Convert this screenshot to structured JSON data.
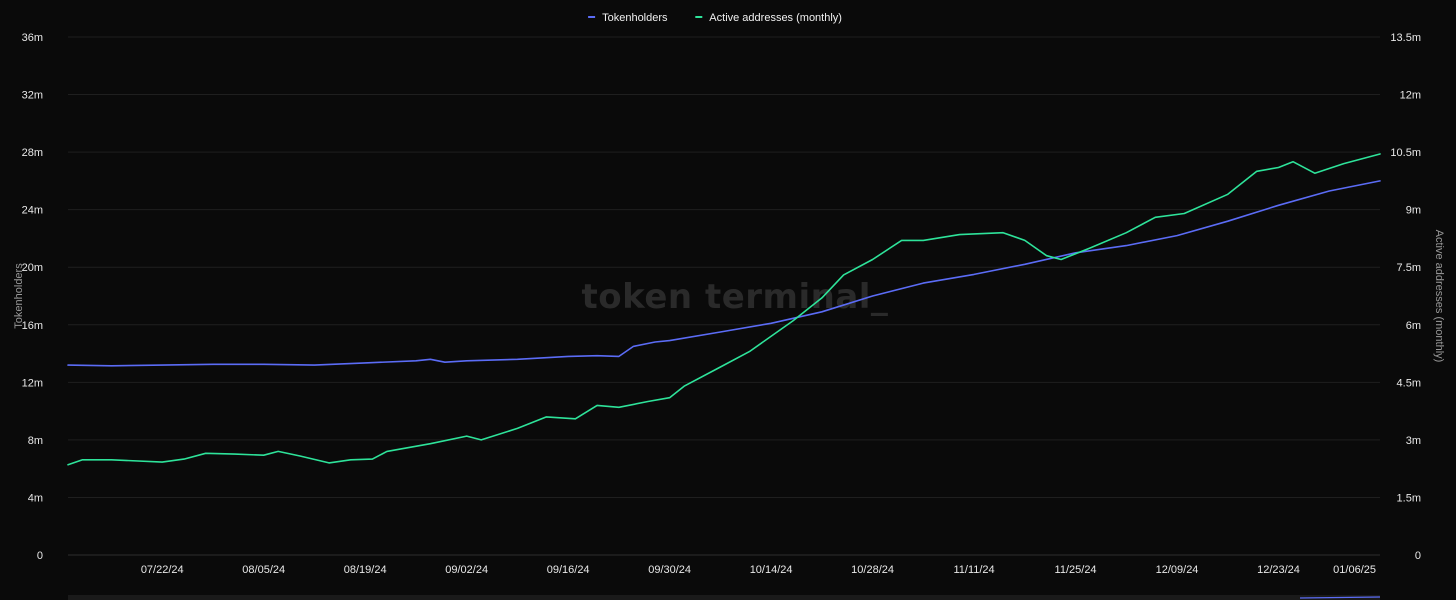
{
  "chart_data": {
    "type": "line",
    "watermark": "token terminal_",
    "legend": {
      "placement": "top-center",
      "items": [
        {
          "name": "Tokenholders",
          "color": "#5b6cf6"
        },
        {
          "name": "Active addresses (monthly)",
          "color": "#2ee39a"
        }
      ]
    },
    "x_axis": {
      "type": "date",
      "range": [
        "2024-07-09",
        "2025-01-06"
      ],
      "ticks": [
        {
          "date": "2024-07-22",
          "label": "07/22/24"
        },
        {
          "date": "2024-08-05",
          "label": "08/05/24"
        },
        {
          "date": "2024-08-19",
          "label": "08/19/24"
        },
        {
          "date": "2024-09-02",
          "label": "09/02/24"
        },
        {
          "date": "2024-09-16",
          "label": "09/16/24"
        },
        {
          "date": "2024-09-30",
          "label": "09/30/24"
        },
        {
          "date": "2024-10-14",
          "label": "10/14/24"
        },
        {
          "date": "2024-10-28",
          "label": "10/28/24"
        },
        {
          "date": "2024-11-11",
          "label": "11/11/24"
        },
        {
          "date": "2024-11-25",
          "label": "11/25/24"
        },
        {
          "date": "2024-12-09",
          "label": "12/09/24"
        },
        {
          "date": "2024-12-23",
          "label": "12/23/24"
        },
        {
          "date": "2025-01-06",
          "label": "01/06/25"
        }
      ]
    },
    "y_left": {
      "label": "Tokenholders",
      "range": [
        0,
        36000000
      ],
      "ticks": [
        {
          "value": 0,
          "label": "0"
        },
        {
          "value": 4000000,
          "label": "4m"
        },
        {
          "value": 8000000,
          "label": "8m"
        },
        {
          "value": 12000000,
          "label": "12m"
        },
        {
          "value": 16000000,
          "label": "16m"
        },
        {
          "value": 20000000,
          "label": "20m"
        },
        {
          "value": 24000000,
          "label": "24m"
        },
        {
          "value": 28000000,
          "label": "28m"
        },
        {
          "value": 32000000,
          "label": "32m"
        },
        {
          "value": 36000000,
          "label": "36m"
        }
      ]
    },
    "y_right": {
      "label": "Active addresses (monthly)",
      "range": [
        0,
        13500000
      ],
      "ticks": [
        {
          "value": 0,
          "label": "0"
        },
        {
          "value": 1500000,
          "label": "1.5m"
        },
        {
          "value": 3000000,
          "label": "3m"
        },
        {
          "value": 4500000,
          "label": "4.5m"
        },
        {
          "value": 6000000,
          "label": "6m"
        },
        {
          "value": 7500000,
          "label": "7.5m"
        },
        {
          "value": 9000000,
          "label": "9m"
        },
        {
          "value": 10500000,
          "label": "10.5m"
        },
        {
          "value": 12000000,
          "label": "12m"
        },
        {
          "value": 13500000,
          "label": "13.5m"
        }
      ]
    },
    "grid": true,
    "series": [
      {
        "name": "Tokenholders",
        "axis": "left",
        "color": "#5b6cf6",
        "points": [
          [
            "2024-07-09",
            13200000
          ],
          [
            "2024-07-15",
            13150000
          ],
          [
            "2024-07-22",
            13200000
          ],
          [
            "2024-07-29",
            13250000
          ],
          [
            "2024-08-05",
            13250000
          ],
          [
            "2024-08-12",
            13200000
          ],
          [
            "2024-08-19",
            13350000
          ],
          [
            "2024-08-26",
            13500000
          ],
          [
            "2024-08-28",
            13600000
          ],
          [
            "2024-08-30",
            13400000
          ],
          [
            "2024-09-02",
            13500000
          ],
          [
            "2024-09-09",
            13600000
          ],
          [
            "2024-09-16",
            13800000
          ],
          [
            "2024-09-20",
            13850000
          ],
          [
            "2024-09-23",
            13800000
          ],
          [
            "2024-09-25",
            14500000
          ],
          [
            "2024-09-28",
            14800000
          ],
          [
            "2024-09-30",
            14900000
          ],
          [
            "2024-10-07",
            15500000
          ],
          [
            "2024-10-14",
            16100000
          ],
          [
            "2024-10-21",
            16900000
          ],
          [
            "2024-10-28",
            18000000
          ],
          [
            "2024-11-04",
            18900000
          ],
          [
            "2024-11-11",
            19500000
          ],
          [
            "2024-11-18",
            20200000
          ],
          [
            "2024-11-25",
            21000000
          ],
          [
            "2024-12-02",
            21500000
          ],
          [
            "2024-12-09",
            22200000
          ],
          [
            "2024-12-16",
            23200000
          ],
          [
            "2024-12-23",
            24300000
          ],
          [
            "2024-12-30",
            25300000
          ],
          [
            "2025-01-06",
            26000000
          ]
        ]
      },
      {
        "name": "Active addresses (monthly)",
        "axis": "right",
        "color": "#2ee39a",
        "points": [
          [
            "2024-07-09",
            2350000
          ],
          [
            "2024-07-11",
            2480000
          ],
          [
            "2024-07-15",
            2480000
          ],
          [
            "2024-07-22",
            2420000
          ],
          [
            "2024-07-25",
            2500000
          ],
          [
            "2024-07-28",
            2650000
          ],
          [
            "2024-08-01",
            2630000
          ],
          [
            "2024-08-05",
            2600000
          ],
          [
            "2024-08-07",
            2700000
          ],
          [
            "2024-08-10",
            2580000
          ],
          [
            "2024-08-14",
            2400000
          ],
          [
            "2024-08-17",
            2480000
          ],
          [
            "2024-08-20",
            2500000
          ],
          [
            "2024-08-22",
            2700000
          ],
          [
            "2024-08-28",
            2900000
          ],
          [
            "2024-09-02",
            3100000
          ],
          [
            "2024-09-04",
            3000000
          ],
          [
            "2024-09-09",
            3300000
          ],
          [
            "2024-09-13",
            3600000
          ],
          [
            "2024-09-17",
            3550000
          ],
          [
            "2024-09-20",
            3900000
          ],
          [
            "2024-09-23",
            3850000
          ],
          [
            "2024-09-27",
            4000000
          ],
          [
            "2024-09-30",
            4100000
          ],
          [
            "2024-10-02",
            4400000
          ],
          [
            "2024-10-07",
            4900000
          ],
          [
            "2024-10-11",
            5300000
          ],
          [
            "2024-10-17",
            6100000
          ],
          [
            "2024-10-21",
            6700000
          ],
          [
            "2024-10-24",
            7300000
          ],
          [
            "2024-10-28",
            7700000
          ],
          [
            "2024-11-01",
            8200000
          ],
          [
            "2024-11-04",
            8200000
          ],
          [
            "2024-11-09",
            8350000
          ],
          [
            "2024-11-15",
            8400000
          ],
          [
            "2024-11-18",
            8200000
          ],
          [
            "2024-11-21",
            7800000
          ],
          [
            "2024-11-23",
            7700000
          ],
          [
            "2024-11-27",
            8000000
          ],
          [
            "2024-12-02",
            8400000
          ],
          [
            "2024-12-06",
            8800000
          ],
          [
            "2024-12-10",
            8900000
          ],
          [
            "2024-12-16",
            9400000
          ],
          [
            "2024-12-20",
            10000000
          ],
          [
            "2024-12-23",
            10100000
          ],
          [
            "2024-12-25",
            10250000
          ],
          [
            "2024-12-28",
            9950000
          ],
          [
            "2025-01-01",
            10200000
          ],
          [
            "2025-01-06",
            10450000
          ]
        ]
      }
    ]
  }
}
